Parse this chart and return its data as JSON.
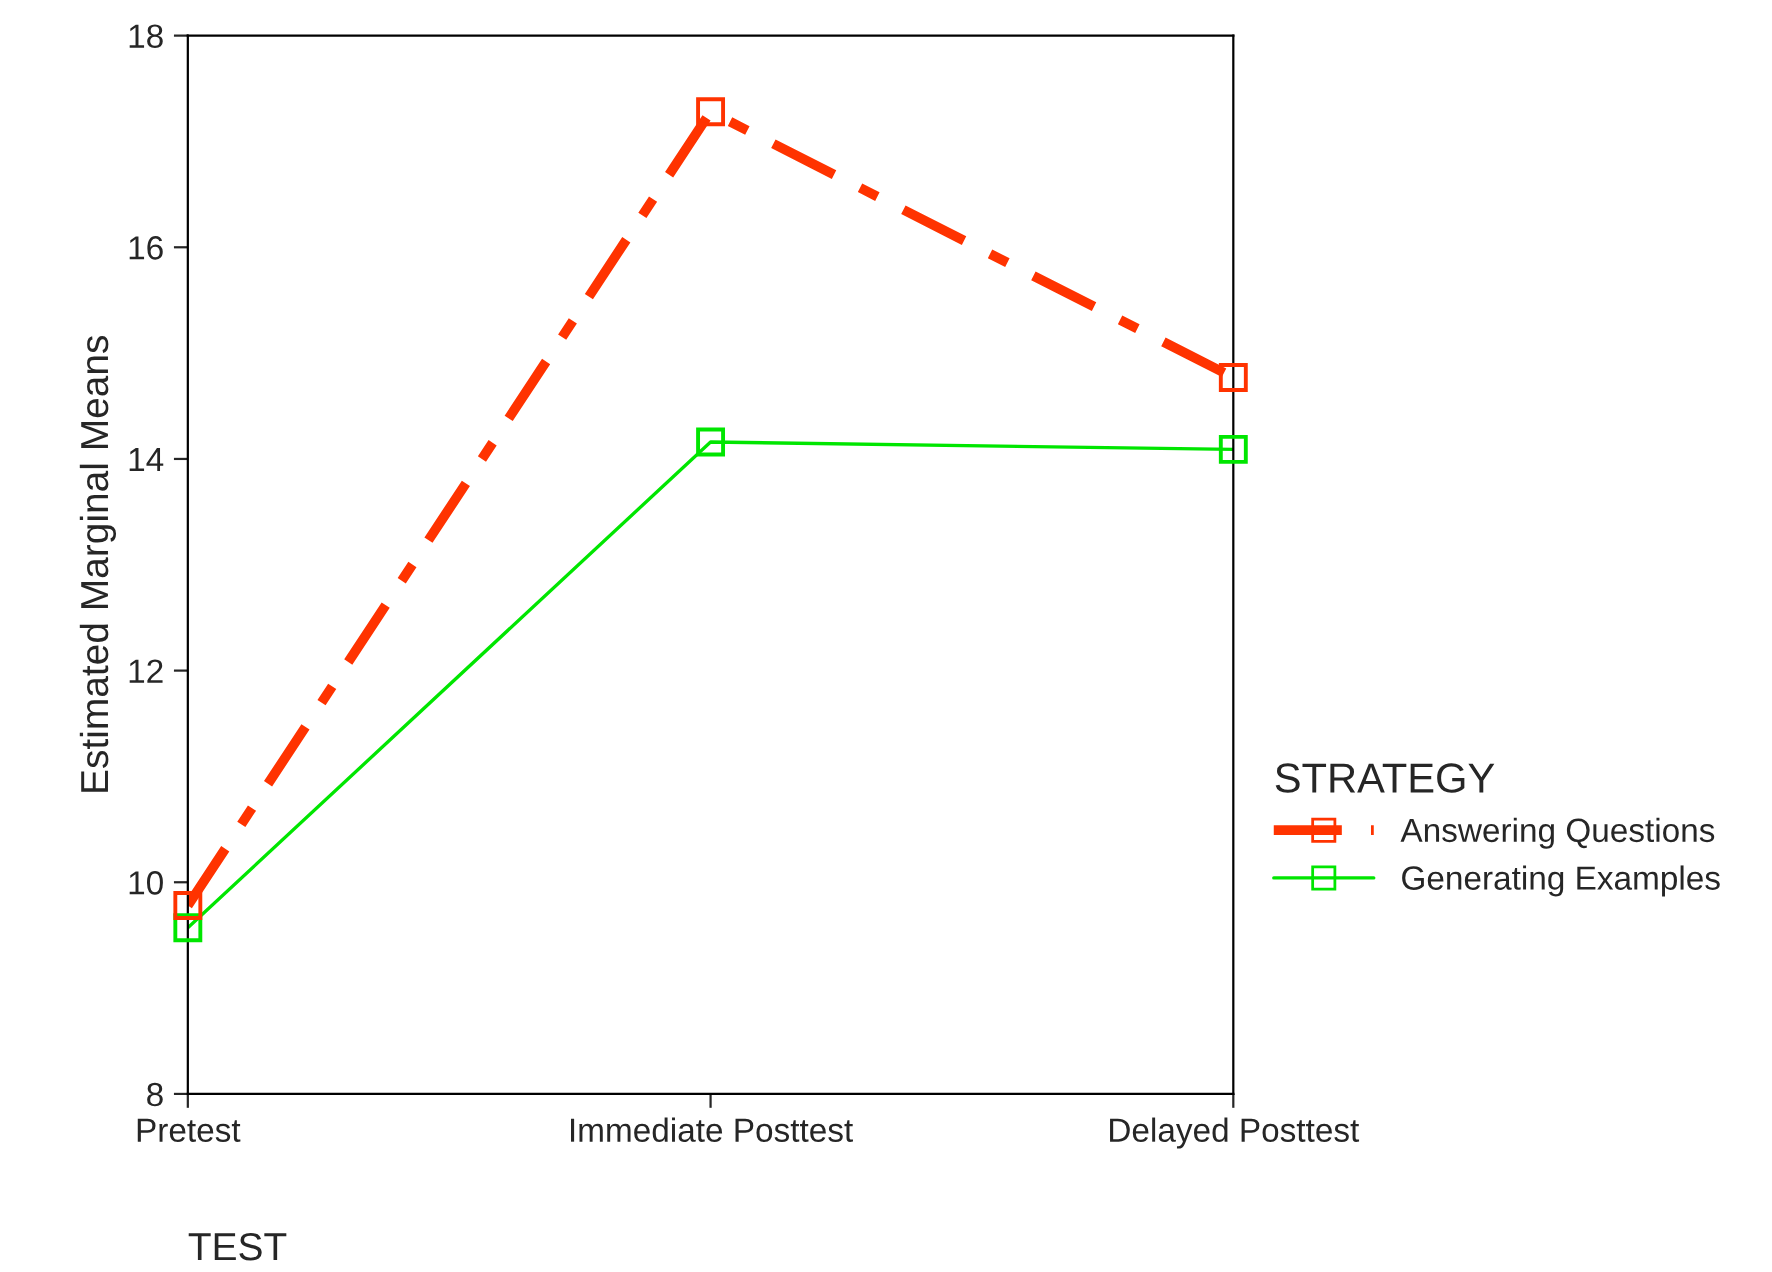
{
  "chart_data": {
    "type": "line",
    "xlabel": "TEST",
    "ylabel": "Estimated Marginal Means",
    "legend_title": "STRATEGY",
    "categories": [
      "Pretest",
      "Immediate Posttest",
      "Delayed Posttest"
    ],
    "series": [
      {
        "name": "Answering Questions",
        "color": "#ff3300",
        "values": [
          9.78,
          17.28,
          14.77
        ],
        "line_style": "dashed"
      },
      {
        "name": "Generating Examples",
        "color": "#00e600",
        "values": [
          9.57,
          14.16,
          14.09
        ],
        "line_style": "solid"
      }
    ],
    "ylim": [
      8,
      18
    ],
    "yticks": [
      8,
      10,
      12,
      14,
      16,
      18
    ],
    "marker": "square",
    "grid": false,
    "legend": "right"
  }
}
